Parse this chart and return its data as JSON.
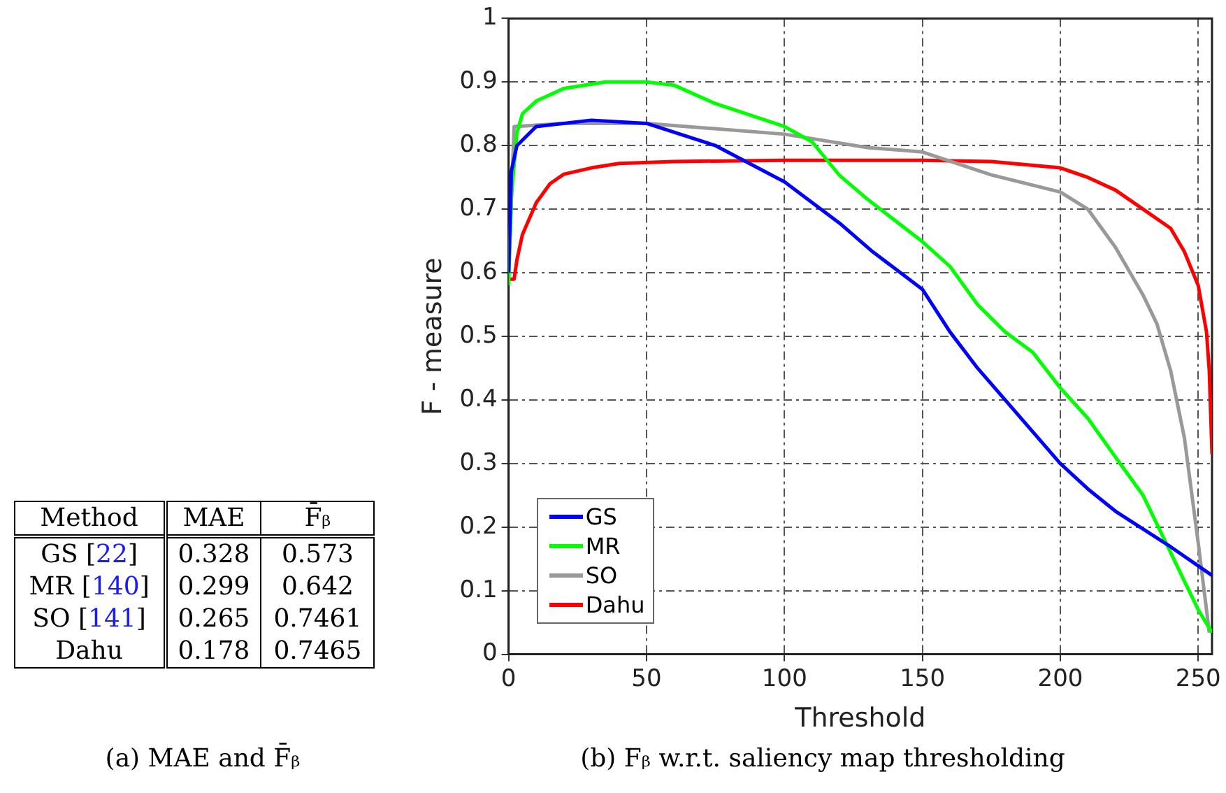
{
  "chart_data": [
    {
      "type": "heatmap",
      "title": "(a) MAE and F̄ᵦ",
      "ylabel": "Method",
      "categories": [
        "MAE",
        "F̄ᵦ"
      ],
      "y_categories": [
        "GS [22]",
        "MR [140]",
        "SO [141]",
        "Dahu"
      ],
      "cells": [
        [
          0.328,
          0.573
        ],
        [
          0.299,
          0.642
        ],
        [
          0.265,
          0.7461
        ],
        [
          0.178,
          0.7465
        ]
      ],
      "data_labels": true
    },
    {
      "type": "line",
      "title": "(b) Fᵦ w.r.t. saliency map thresholding",
      "xlabel": "Threshold",
      "ylabel": "F - measure",
      "xlim": [
        0,
        255
      ],
      "xticks": [
        0,
        50,
        100,
        150,
        200,
        250
      ],
      "ylim": [
        0,
        1
      ],
      "yticks": [
        0,
        0.1,
        0.2,
        0.3,
        0.4,
        0.5,
        0.6,
        0.7,
        0.8,
        0.9,
        1
      ],
      "grid": true,
      "legend": "bottom left",
      "line_style": "solid",
      "marker": "none",
      "series": [
        {
          "name": "GS",
          "color": "#0000ff",
          "x": [
            0,
            1,
            3,
            10,
            30,
            50,
            75,
            100,
            120,
            132,
            150,
            160,
            170,
            180,
            190,
            200,
            210,
            220,
            240,
            255
          ],
          "values": [
            0.6,
            0.76,
            0.8,
            0.83,
            0.84,
            0.835,
            0.8,
            0.743,
            0.678,
            0.633,
            0.574,
            0.507,
            0.45,
            0.4,
            0.35,
            0.3,
            0.26,
            0.225,
            0.169,
            0.124
          ]
        },
        {
          "name": "MR",
          "color": "#00ff00",
          "x": [
            0,
            1,
            3,
            5,
            10,
            20,
            35,
            50,
            60,
            75,
            100,
            110,
            120,
            130,
            150,
            160,
            170,
            180,
            190,
            200,
            210,
            220,
            230,
            240,
            245,
            250,
            255
          ],
          "values": [
            0.58,
            0.72,
            0.82,
            0.85,
            0.87,
            0.89,
            0.9,
            0.9,
            0.895,
            0.866,
            0.83,
            0.806,
            0.753,
            0.716,
            0.649,
            0.61,
            0.55,
            0.507,
            0.475,
            0.419,
            0.371,
            0.31,
            0.25,
            0.16,
            0.115,
            0.07,
            0.034
          ]
        },
        {
          "name": "SO",
          "color": "#999999",
          "x": [
            0,
            2,
            20,
            50,
            100,
            130,
            150,
            175,
            200,
            210,
            220,
            230,
            235,
            240,
            245,
            250,
            253,
            254
          ],
          "values": [
            0.6,
            0.83,
            0.835,
            0.835,
            0.818,
            0.797,
            0.79,
            0.754,
            0.727,
            0.7,
            0.64,
            0.565,
            0.52,
            0.446,
            0.34,
            0.175,
            0.07,
            0.034
          ]
        },
        {
          "name": "Dahu",
          "color": "#ff0000",
          "x": [
            0,
            2,
            3,
            5,
            10,
            15,
            20,
            30,
            40,
            60,
            100,
            150,
            175,
            200,
            210,
            220,
            230,
            240,
            245,
            250,
            253,
            254,
            255
          ],
          "values": [
            0.59,
            0.59,
            0.62,
            0.66,
            0.71,
            0.74,
            0.755,
            0.765,
            0.772,
            0.775,
            0.777,
            0.777,
            0.775,
            0.765,
            0.75,
            0.73,
            0.7,
            0.67,
            0.633,
            0.58,
            0.507,
            0.446,
            0.315
          ]
        }
      ]
    }
  ]
}
